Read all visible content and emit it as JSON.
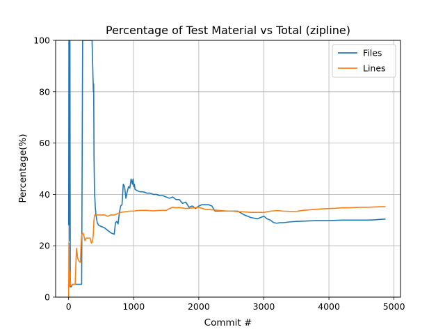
{
  "chart_data": {
    "type": "line",
    "title": "Percentage of Test Material vs Total (zipline)",
    "xlabel": "Commit #",
    "ylabel": "Percentage(%)",
    "xlim": [
      -200,
      5100
    ],
    "ylim": [
      0,
      100
    ],
    "xticks": [
      0,
      1000,
      2000,
      3000,
      4000,
      5000
    ],
    "yticks": [
      0,
      20,
      40,
      60,
      80,
      100
    ],
    "grid": true,
    "legend_position": "top-right",
    "colors": {
      "Files": "#1f77b4",
      "Lines": "#ff7f0e"
    },
    "series": [
      {
        "name": "Files",
        "x": [
          0,
          5,
          10,
          15,
          20,
          25,
          30,
          40,
          60,
          100,
          110,
          120,
          140,
          170,
          200,
          215,
          225,
          235,
          245,
          260,
          300,
          340,
          360,
          370,
          380,
          385,
          390,
          395,
          400,
          410,
          420,
          440,
          460,
          500,
          550,
          600,
          650,
          700,
          720,
          740,
          760,
          780,
          800,
          820,
          840,
          860,
          880,
          900,
          920,
          940,
          960,
          980,
          990,
          1000,
          1010,
          1020,
          1050,
          1100,
          1150,
          1200,
          1250,
          1300,
          1350,
          1400,
          1450,
          1500,
          1550,
          1600,
          1650,
          1700,
          1750,
          1800,
          1850,
          1900,
          1950,
          2000,
          2050,
          2100,
          2150,
          2200,
          2250,
          2300,
          2400,
          2500,
          2600,
          2700,
          2800,
          2900,
          2950,
          3000,
          3050,
          3100,
          3150,
          3200,
          3250,
          3300,
          3400,
          3500,
          3600,
          3700,
          3800,
          3900,
          4000,
          4100,
          4200,
          4300,
          4400,
          4500,
          4600,
          4700,
          4800,
          4870
        ],
        "values": [
          28,
          100,
          100,
          22,
          100,
          8,
          4,
          4,
          5,
          5,
          5,
          5,
          5,
          5,
          5,
          100,
          100,
          100,
          100,
          100,
          100,
          100,
          100,
          90,
          80,
          83,
          55,
          45,
          40,
          35,
          32,
          29,
          28,
          27.5,
          27,
          26,
          25,
          24.5,
          29,
          29.5,
          28.5,
          33,
          35.5,
          36,
          44,
          43,
          38.5,
          41,
          43,
          42.5,
          46,
          44,
          46,
          43,
          44,
          42,
          41.5,
          41,
          41,
          40.5,
          40.5,
          40,
          40,
          39.5,
          39.5,
          39,
          38.5,
          39,
          38,
          38,
          36.5,
          37,
          35,
          35.5,
          34.5,
          35.5,
          36,
          36,
          36,
          35.5,
          33.5,
          33.5,
          33.5,
          33.5,
          33.5,
          32,
          31,
          30.5,
          31,
          31.5,
          30.5,
          30,
          29,
          28.8,
          29,
          29,
          29.3,
          29.5,
          29.6,
          29.7,
          29.8,
          29.8,
          29.8,
          29.9,
          30,
          30,
          30,
          30,
          30,
          30.1,
          30.3,
          30.4
        ]
      },
      {
        "name": "Lines",
        "x": [
          0,
          5,
          10,
          15,
          20,
          25,
          30,
          40,
          60,
          80,
          100,
          120,
          140,
          160,
          180,
          190,
          200,
          215,
          230,
          250,
          260,
          270,
          300,
          330,
          350,
          370,
          380,
          385,
          390,
          400,
          420,
          450,
          500,
          550,
          600,
          650,
          700,
          750,
          800,
          850,
          900,
          950,
          1000,
          1050,
          1100,
          1200,
          1300,
          1400,
          1500,
          1550,
          1600,
          1650,
          1700,
          1800,
          1900,
          2000,
          2100,
          2200,
          2300,
          2400,
          2500,
          2600,
          2700,
          2800,
          2900,
          3000,
          3100,
          3200,
          3300,
          3400,
          3500,
          3600,
          3700,
          3800,
          3900,
          4000,
          4100,
          4200,
          4300,
          4400,
          4500,
          4600,
          4700,
          4800,
          4870
        ],
        "values": [
          0,
          21,
          5,
          4,
          10,
          6,
          4.5,
          4.5,
          4.8,
          5,
          5,
          19,
          15,
          14,
          13.5,
          20,
          24,
          25,
          24.5,
          22,
          22.5,
          23,
          23,
          23,
          21,
          22,
          25,
          28,
          30,
          32,
          32,
          32,
          32,
          32,
          31.5,
          32,
          32,
          32.5,
          33,
          33.2,
          33.4,
          33.5,
          33.5,
          33.7,
          33.8,
          33.8,
          33.6,
          33.8,
          33.8,
          34.5,
          35,
          34.8,
          34.9,
          34.5,
          34.7,
          35,
          34.2,
          34,
          33.8,
          33.6,
          33.5,
          33.3,
          33.2,
          33,
          33,
          33,
          33.5,
          33.7,
          33.5,
          33.4,
          33.4,
          33.8,
          34,
          34.2,
          34.4,
          34.5,
          34.6,
          34.8,
          34.8,
          34.9,
          35,
          35,
          35.1,
          35.2,
          35.2
        ]
      }
    ]
  }
}
